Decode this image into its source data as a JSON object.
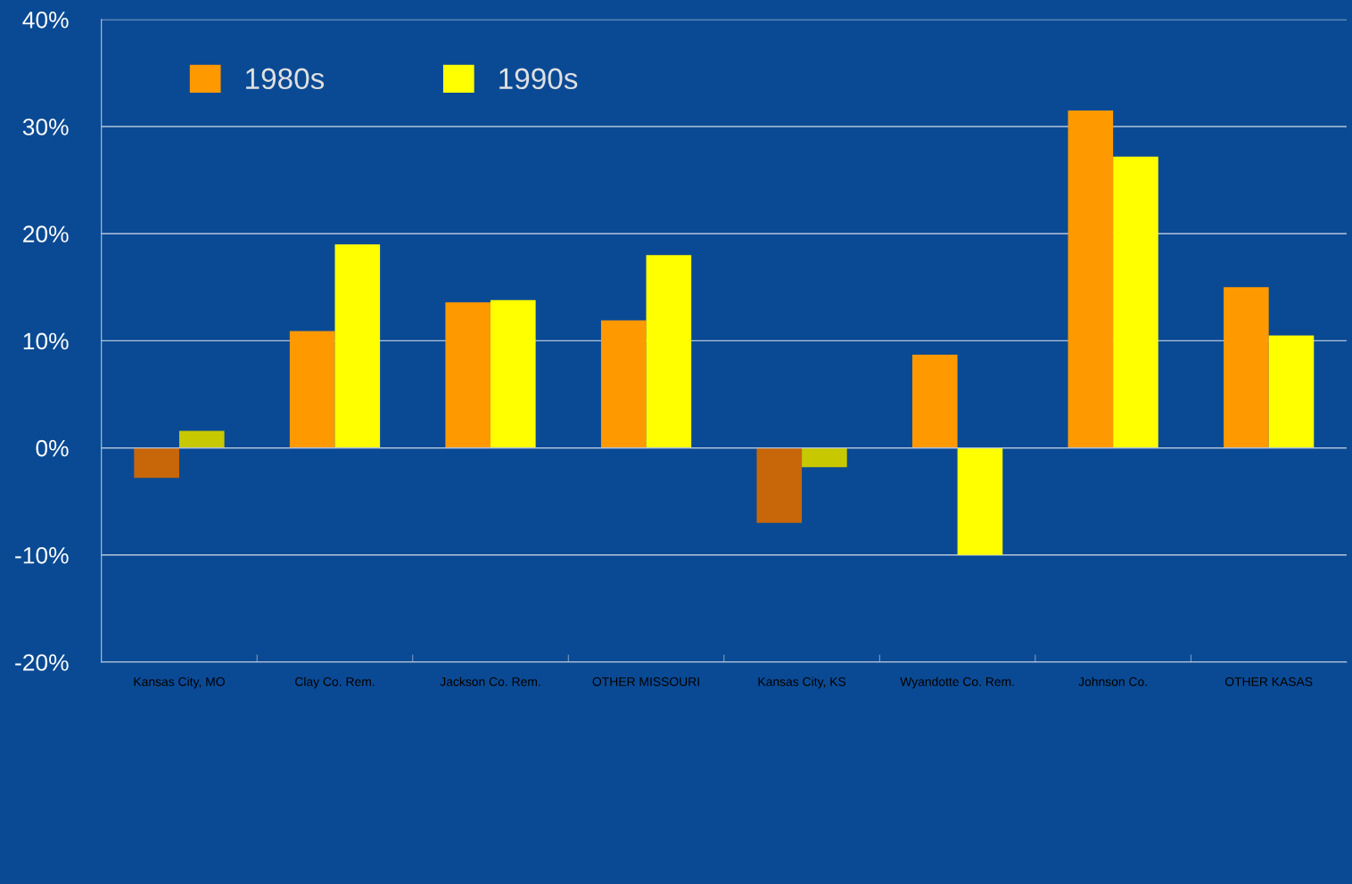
{
  "chart_data": {
    "type": "bar",
    "categories": [
      "Kansas City, MO",
      "Clay Co. Rem.",
      "Jackson Co. Rem.",
      "OTHER MISSOURI",
      "Kansas City, KS",
      "Wyandotte Co. Rem.",
      "Johnson Co.",
      "OTHER KASAS"
    ],
    "series": [
      {
        "name": "1980s",
        "color": "#ff9900",
        "colors": [
          "#c8660a",
          "#ff9900",
          "#ff9900",
          "#ff9900",
          "#c8660a",
          "#ff9900",
          "#ff9900",
          "#ff9900"
        ],
        "values": [
          -2.8,
          10.9,
          13.6,
          11.9,
          -7.0,
          8.7,
          31.5,
          15.0
        ]
      },
      {
        "name": "1990s",
        "color": "#ffff00",
        "colors": [
          "#c8c800",
          "#ffff00",
          "#ffff00",
          "#ffff00",
          "#c8c800",
          "#ffff00",
          "#ffff00",
          "#ffff00"
        ],
        "values": [
          1.6,
          19.0,
          13.8,
          18.0,
          -1.8,
          -10.0,
          27.2,
          10.5
        ]
      }
    ],
    "ylim": [
      -20,
      40
    ],
    "yticks": [
      {
        "value": -20,
        "label": "-20%"
      },
      {
        "value": -10,
        "label": "-10%"
      },
      {
        "value": 0,
        "label": "0%"
      },
      {
        "value": 10,
        "label": "10%"
      },
      {
        "value": 20,
        "label": "20%"
      },
      {
        "value": 30,
        "label": "30%"
      },
      {
        "value": 40,
        "label": "40%"
      }
    ],
    "grid": "y",
    "legend": "top left"
  }
}
